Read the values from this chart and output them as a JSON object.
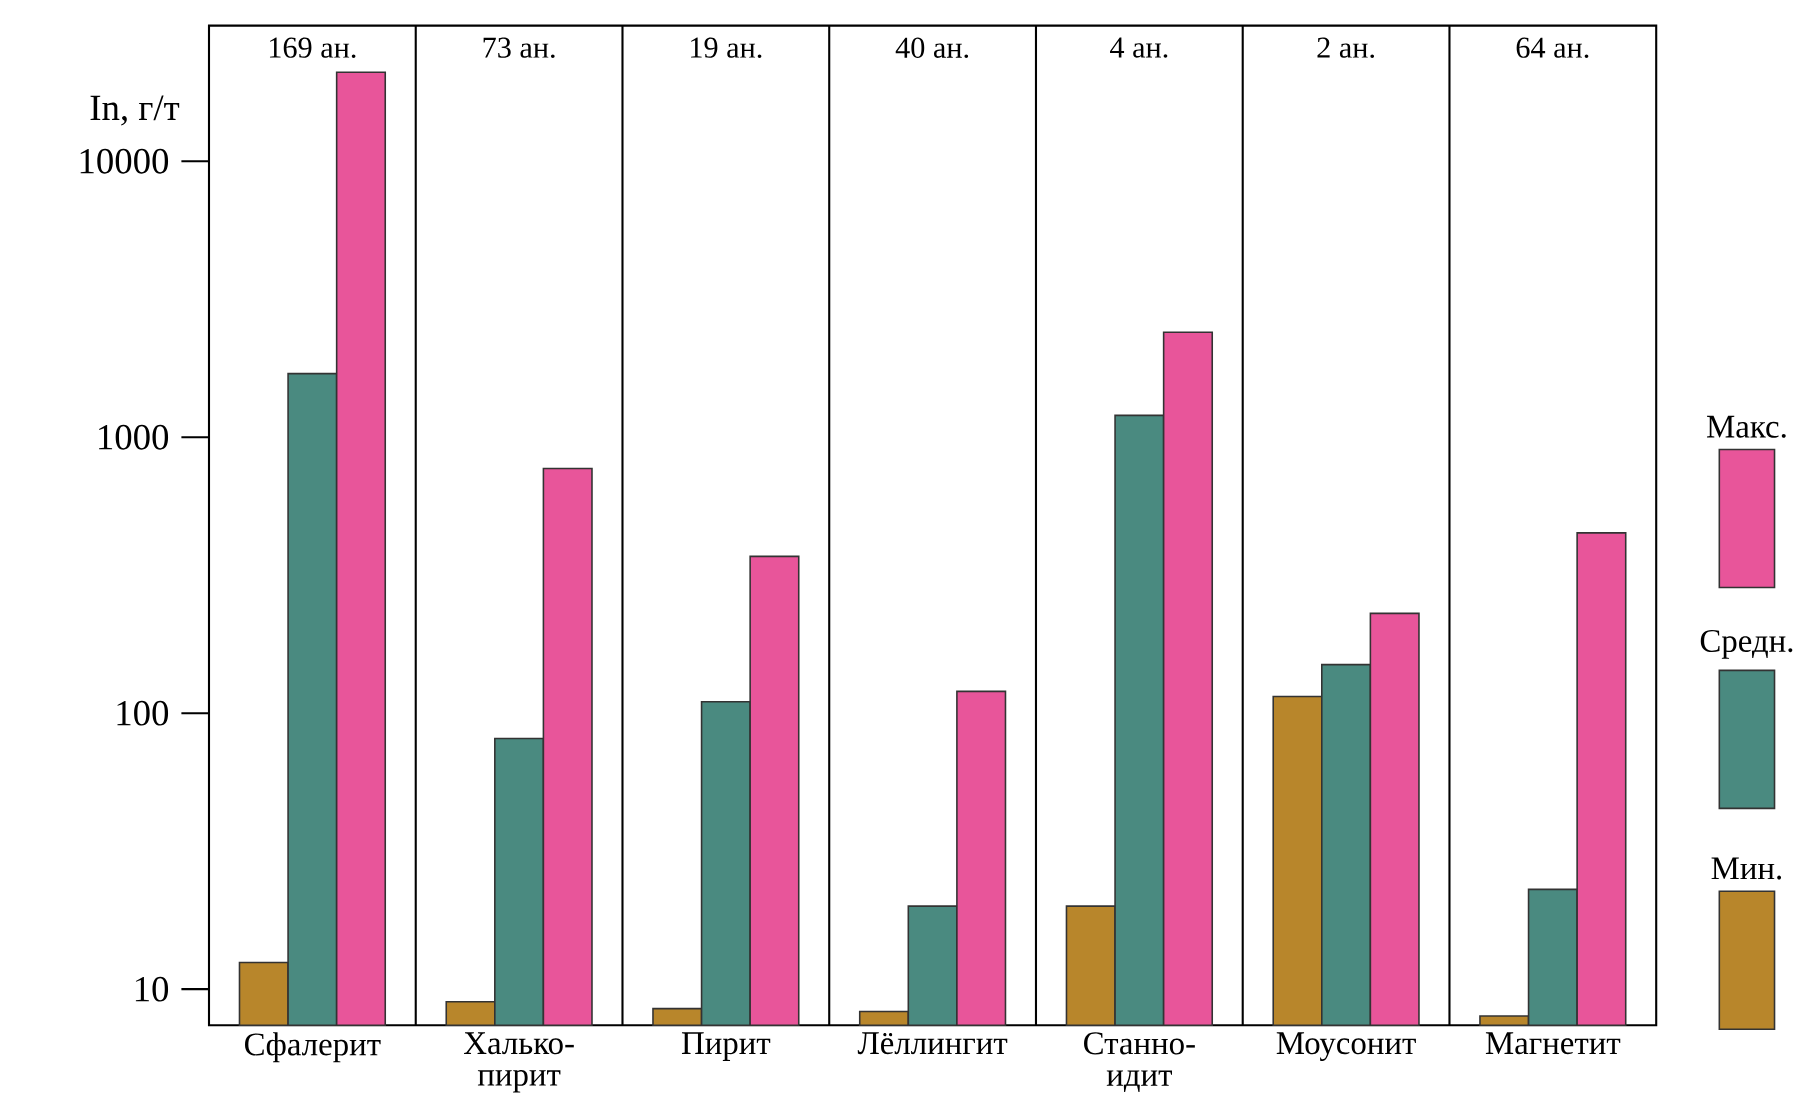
{
  "chart_data": {
    "type": "bar",
    "ylabel": "In, г/т",
    "categories": [
      "Сфалерит",
      "Халько-пирит",
      "Пирит",
      "Лёллингит",
      "Станно-идит",
      "Моусонит",
      "Магнетит"
    ],
    "series": [
      {
        "name": "Мин.",
        "color": "#b8862b",
        "values": [
          12.5,
          9.0,
          8.5,
          8.3,
          20,
          115,
          8.0
        ]
      },
      {
        "name": "Средн.",
        "color": "#4a8a80",
        "values": [
          1700,
          81,
          110,
          20,
          1200,
          150,
          23
        ]
      },
      {
        "name": "Макс.",
        "color": "#e8559a",
        "values": [
          21000,
          770,
          370,
          120,
          2400,
          230,
          450
        ]
      }
    ],
    "annotations": [
      "169 ан.",
      "73 ан.",
      "19 ан.",
      "40 ан.",
      "4 ан.",
      "2 ан.",
      "64 ан."
    ],
    "log": true,
    "ylim": [
      7.4,
      31000
    ],
    "yticks": [
      10,
      100,
      1000,
      10000
    ],
    "grid": "x",
    "legend": "right"
  }
}
